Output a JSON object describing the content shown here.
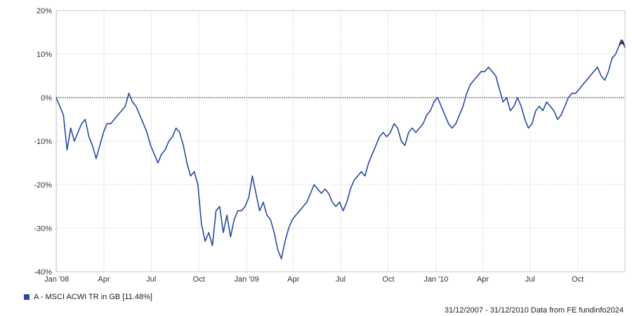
{
  "chart_data": {
    "type": "line",
    "title": "",
    "xlabel": "",
    "ylabel": "",
    "x_range": [
      "2007-12-31",
      "2010-12-31"
    ],
    "ylim": [
      -40,
      20
    ],
    "y_ticks": [
      20,
      10,
      0,
      -10,
      -20,
      -30,
      -40
    ],
    "y_tick_labels": [
      "20%",
      "10%",
      "0%",
      "-10%",
      "-20%",
      "-30%",
      "-40%"
    ],
    "x_ticks": [
      {
        "date": "2008-01-01",
        "label": "Jan '08"
      },
      {
        "date": "2008-04-01",
        "label": "Apr"
      },
      {
        "date": "2008-07-01",
        "label": "Jul"
      },
      {
        "date": "2008-10-01",
        "label": "Oct"
      },
      {
        "date": "2009-01-01",
        "label": "Jan '09"
      },
      {
        "date": "2009-04-01",
        "label": "Apr"
      },
      {
        "date": "2009-07-01",
        "label": "Jul"
      },
      {
        "date": "2009-10-01",
        "label": "Oct"
      },
      {
        "date": "2010-01-01",
        "label": "Jan '10"
      },
      {
        "date": "2010-04-01",
        "label": "Apr"
      },
      {
        "date": "2010-07-01",
        "label": "Jul"
      },
      {
        "date": "2010-10-01",
        "label": "Oct"
      }
    ],
    "grid": true,
    "zero_line": true,
    "legend_position": "bottom-left",
    "series": [
      {
        "name": "A - MSCI ACWI TR in GB [11.48%]",
        "end_label": "A",
        "color": "#2a4a9e",
        "points": [
          [
            "2007-12-31",
            0
          ],
          [
            "2008-01-07",
            -2
          ],
          [
            "2008-01-14",
            -4
          ],
          [
            "2008-01-21",
            -12
          ],
          [
            "2008-01-28",
            -7
          ],
          [
            "2008-02-04",
            -10
          ],
          [
            "2008-02-11",
            -8
          ],
          [
            "2008-02-18",
            -6
          ],
          [
            "2008-02-25",
            -5
          ],
          [
            "2008-03-03",
            -9
          ],
          [
            "2008-03-10",
            -11
          ],
          [
            "2008-03-17",
            -14
          ],
          [
            "2008-03-24",
            -11
          ],
          [
            "2008-03-31",
            -8
          ],
          [
            "2008-04-07",
            -6
          ],
          [
            "2008-04-14",
            -6
          ],
          [
            "2008-04-21",
            -5
          ],
          [
            "2008-04-28",
            -4
          ],
          [
            "2008-05-05",
            -3
          ],
          [
            "2008-05-12",
            -2
          ],
          [
            "2008-05-19",
            1
          ],
          [
            "2008-05-26",
            -1
          ],
          [
            "2008-06-02",
            -2
          ],
          [
            "2008-06-09",
            -4
          ],
          [
            "2008-06-16",
            -6
          ],
          [
            "2008-06-23",
            -8
          ],
          [
            "2008-06-30",
            -11
          ],
          [
            "2008-07-07",
            -13
          ],
          [
            "2008-07-14",
            -15
          ],
          [
            "2008-07-21",
            -13
          ],
          [
            "2008-07-28",
            -12
          ],
          [
            "2008-08-04",
            -10
          ],
          [
            "2008-08-11",
            -9
          ],
          [
            "2008-08-18",
            -7
          ],
          [
            "2008-08-25",
            -8
          ],
          [
            "2008-09-01",
            -11
          ],
          [
            "2008-09-08",
            -15
          ],
          [
            "2008-09-15",
            -18
          ],
          [
            "2008-09-22",
            -17
          ],
          [
            "2008-09-29",
            -20
          ],
          [
            "2008-10-06",
            -29
          ],
          [
            "2008-10-13",
            -33
          ],
          [
            "2008-10-20",
            -31
          ],
          [
            "2008-10-27",
            -34
          ],
          [
            "2008-11-03",
            -26
          ],
          [
            "2008-11-10",
            -25
          ],
          [
            "2008-11-17",
            -31
          ],
          [
            "2008-11-24",
            -27
          ],
          [
            "2008-12-01",
            -32
          ],
          [
            "2008-12-08",
            -28
          ],
          [
            "2008-12-15",
            -26
          ],
          [
            "2008-12-22",
            -26
          ],
          [
            "2008-12-29",
            -25
          ],
          [
            "2009-01-05",
            -23
          ],
          [
            "2009-01-12",
            -18
          ],
          [
            "2009-01-19",
            -22
          ],
          [
            "2009-01-26",
            -26
          ],
          [
            "2009-02-02",
            -24
          ],
          [
            "2009-02-09",
            -27
          ],
          [
            "2009-02-16",
            -28
          ],
          [
            "2009-02-23",
            -31
          ],
          [
            "2009-03-02",
            -35
          ],
          [
            "2009-03-09",
            -37
          ],
          [
            "2009-03-16",
            -33
          ],
          [
            "2009-03-23",
            -30
          ],
          [
            "2009-03-30",
            -28
          ],
          [
            "2009-04-06",
            -27
          ],
          [
            "2009-04-13",
            -26
          ],
          [
            "2009-04-20",
            -25
          ],
          [
            "2009-04-27",
            -24
          ],
          [
            "2009-05-04",
            -22
          ],
          [
            "2009-05-11",
            -20
          ],
          [
            "2009-05-18",
            -21
          ],
          [
            "2009-05-25",
            -22
          ],
          [
            "2009-06-01",
            -21
          ],
          [
            "2009-06-08",
            -22
          ],
          [
            "2009-06-15",
            -24
          ],
          [
            "2009-06-22",
            -25
          ],
          [
            "2009-06-29",
            -24
          ],
          [
            "2009-07-06",
            -26
          ],
          [
            "2009-07-13",
            -24
          ],
          [
            "2009-07-20",
            -21
          ],
          [
            "2009-07-27",
            -19
          ],
          [
            "2009-08-03",
            -18
          ],
          [
            "2009-08-10",
            -17
          ],
          [
            "2009-08-17",
            -18
          ],
          [
            "2009-08-24",
            -15
          ],
          [
            "2009-08-31",
            -13
          ],
          [
            "2009-09-07",
            -11
          ],
          [
            "2009-09-14",
            -9
          ],
          [
            "2009-09-21",
            -8
          ],
          [
            "2009-09-28",
            -9
          ],
          [
            "2009-10-05",
            -8
          ],
          [
            "2009-10-12",
            -6
          ],
          [
            "2009-10-19",
            -7
          ],
          [
            "2009-10-26",
            -10
          ],
          [
            "2009-11-02",
            -11
          ],
          [
            "2009-11-09",
            -8
          ],
          [
            "2009-11-16",
            -7
          ],
          [
            "2009-11-23",
            -8
          ],
          [
            "2009-11-30",
            -7
          ],
          [
            "2009-12-07",
            -6
          ],
          [
            "2009-12-14",
            -4
          ],
          [
            "2009-12-21",
            -3
          ],
          [
            "2009-12-28",
            -1
          ],
          [
            "2010-01-04",
            0
          ],
          [
            "2010-01-11",
            -2
          ],
          [
            "2010-01-18",
            -4
          ],
          [
            "2010-01-25",
            -6
          ],
          [
            "2010-02-01",
            -7
          ],
          [
            "2010-02-08",
            -6
          ],
          [
            "2010-02-15",
            -4
          ],
          [
            "2010-02-22",
            -2
          ],
          [
            "2010-03-01",
            1
          ],
          [
            "2010-03-08",
            3
          ],
          [
            "2010-03-15",
            4
          ],
          [
            "2010-03-22",
            5
          ],
          [
            "2010-03-29",
            6
          ],
          [
            "2010-04-05",
            6
          ],
          [
            "2010-04-12",
            7
          ],
          [
            "2010-04-19",
            6
          ],
          [
            "2010-04-26",
            5
          ],
          [
            "2010-05-03",
            2
          ],
          [
            "2010-05-10",
            -1
          ],
          [
            "2010-05-17",
            0
          ],
          [
            "2010-05-24",
            -3
          ],
          [
            "2010-05-31",
            -2
          ],
          [
            "2010-06-07",
            0
          ],
          [
            "2010-06-14",
            -2
          ],
          [
            "2010-06-21",
            -5
          ],
          [
            "2010-06-28",
            -7
          ],
          [
            "2010-07-05",
            -6
          ],
          [
            "2010-07-12",
            -3
          ],
          [
            "2010-07-19",
            -2
          ],
          [
            "2010-07-26",
            -3
          ],
          [
            "2010-08-02",
            -1
          ],
          [
            "2010-08-09",
            -2
          ],
          [
            "2010-08-16",
            -3
          ],
          [
            "2010-08-23",
            -5
          ],
          [
            "2010-08-30",
            -4
          ],
          [
            "2010-09-06",
            -2
          ],
          [
            "2010-09-13",
            0
          ],
          [
            "2010-09-20",
            1
          ],
          [
            "2010-09-27",
            1
          ],
          [
            "2010-10-04",
            2
          ],
          [
            "2010-10-11",
            3
          ],
          [
            "2010-10-18",
            4
          ],
          [
            "2010-10-25",
            5
          ],
          [
            "2010-11-01",
            6
          ],
          [
            "2010-11-08",
            7
          ],
          [
            "2010-11-15",
            5
          ],
          [
            "2010-11-22",
            4
          ],
          [
            "2010-11-29",
            6
          ],
          [
            "2010-12-06",
            9
          ],
          [
            "2010-12-13",
            10
          ],
          [
            "2010-12-20",
            12
          ],
          [
            "2010-12-27",
            13
          ],
          [
            "2010-12-31",
            11.48
          ]
        ]
      }
    ]
  },
  "legend": {
    "label": "A - MSCI ACWI TR in GB [11.48%]",
    "color": "#2a4a9e"
  },
  "footer": {
    "text": "31/12/2007 - 31/12/2010 Data from FE fundinfo2024"
  }
}
